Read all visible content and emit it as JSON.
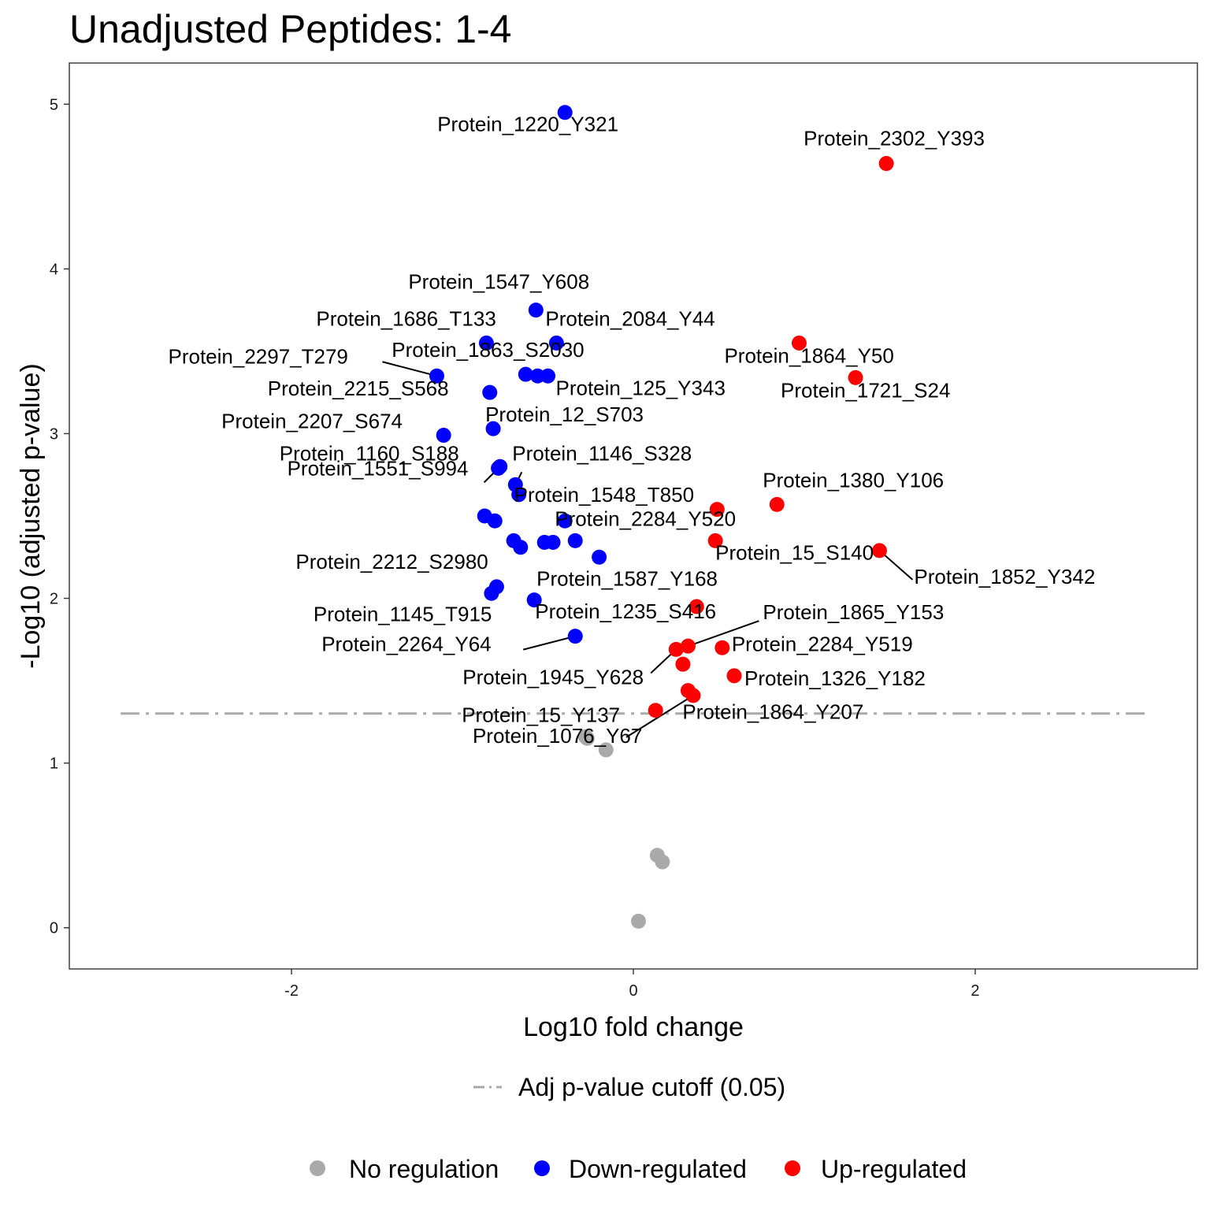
{
  "chart_data": {
    "type": "scatter",
    "title": "Unadjusted Peptides: 1-4",
    "xlabel": "Log10 fold change",
    "ylabel": "-Log10 (adjusted p-value)",
    "xlim": [
      -3.3,
      3.3
    ],
    "ylim": [
      -0.25,
      5.25
    ],
    "xticks": [
      -2,
      0,
      2
    ],
    "yticks": [
      0,
      1,
      2,
      3,
      4,
      5
    ],
    "xtick_labels": [
      "-2",
      "0",
      "2"
    ],
    "ytick_labels": [
      "0",
      "1",
      "2",
      "3",
      "4",
      "5"
    ],
    "grid": false,
    "cutoff": {
      "y": 1.301,
      "x_range": [
        -3.0,
        3.0
      ],
      "label": "Adj p-value cutoff (0.05)",
      "color": "#aaaaaa"
    },
    "legend_position": "bottom",
    "series": [
      {
        "name": "No regulation",
        "color": "#aaaaaa",
        "points": [
          {
            "x": -0.28,
            "y": 1.16
          },
          {
            "x": -0.27,
            "y": 1.15
          },
          {
            "x": -0.16,
            "y": 1.08
          },
          {
            "x": 0.14,
            "y": 0.44
          },
          {
            "x": 0.17,
            "y": 0.4
          },
          {
            "x": 0.03,
            "y": 0.04
          }
        ]
      },
      {
        "name": "Down-regulated",
        "color": "#0000ff",
        "points": [
          {
            "x": -0.4,
            "y": 4.95,
            "label": "Protein_1220_Y321"
          },
          {
            "x": -0.57,
            "y": 3.75,
            "label": "Protein_1547_Y608"
          },
          {
            "x": -0.86,
            "y": 3.55,
            "label": "Protein_1686_T133"
          },
          {
            "x": -0.45,
            "y": 3.55,
            "label": "Protein_2084_Y44"
          },
          {
            "x": -1.15,
            "y": 3.35,
            "label": "Protein_2297_T279"
          },
          {
            "x": -0.63,
            "y": 3.36,
            "label": "Protein_1863_S2030"
          },
          {
            "x": -0.56,
            "y": 3.35
          },
          {
            "x": -0.5,
            "y": 3.35,
            "label": "Protein_125_Y343"
          },
          {
            "x": -0.84,
            "y": 3.25,
            "label": "Protein_2215_S568"
          },
          {
            "x": -0.82,
            "y": 3.03,
            "label": "Protein_12_S703"
          },
          {
            "x": -1.11,
            "y": 2.99,
            "label": "Protein_2207_S674"
          },
          {
            "x": -0.78,
            "y": 2.8,
            "label": "Protein_1160_S188"
          },
          {
            "x": -0.69,
            "y": 2.69,
            "label": "Protein_1146_S328"
          },
          {
            "x": -0.67,
            "y": 2.63,
            "label": "Protein_1548_T850"
          },
          {
            "x": -0.79,
            "y": 2.79,
            "label": "Protein_1551_S994"
          },
          {
            "x": -0.87,
            "y": 2.5
          },
          {
            "x": -0.81,
            "y": 2.47
          },
          {
            "x": -0.4,
            "y": 2.47,
            "label": "Protein_2284_Y520"
          },
          {
            "x": -0.7,
            "y": 2.35
          },
          {
            "x": -0.66,
            "y": 2.31
          },
          {
            "x": -0.52,
            "y": 2.34
          },
          {
            "x": -0.47,
            "y": 2.34
          },
          {
            "x": -0.34,
            "y": 2.35
          },
          {
            "x": -0.2,
            "y": 2.25
          },
          {
            "x": -0.8,
            "y": 2.07,
            "label": "Protein_2212_S2980"
          },
          {
            "x": -0.83,
            "y": 2.03,
            "label": "Protein_1145_T915"
          },
          {
            "x": -0.58,
            "y": 1.99,
            "label": "Protein_1587_Y168"
          },
          {
            "x": -0.34,
            "y": 1.77,
            "label": "Protein_2264_Y64"
          }
        ]
      },
      {
        "name": "Up-regulated",
        "color": "#ff0000",
        "points": [
          {
            "x": 1.48,
            "y": 4.64,
            "label": "Protein_2302_Y393"
          },
          {
            "x": 0.97,
            "y": 3.55,
            "label": "Protein_1864_Y50"
          },
          {
            "x": 1.3,
            "y": 3.34,
            "label": "Protein_1721_S24"
          },
          {
            "x": 0.84,
            "y": 2.57,
            "label": "Protein_1380_Y106"
          },
          {
            "x": 0.49,
            "y": 2.54
          },
          {
            "x": 0.48,
            "y": 2.35,
            "label": "Protein_15_S140"
          },
          {
            "x": 1.44,
            "y": 2.29,
            "label": "Protein_1852_Y342"
          },
          {
            "x": 0.37,
            "y": 1.95,
            "label": "Protein_1235_S416"
          },
          {
            "x": 0.32,
            "y": 1.71,
            "label": "Protein_1865_Y153"
          },
          {
            "x": 0.25,
            "y": 1.69,
            "label": "Protein_1945_Y628"
          },
          {
            "x": 0.52,
            "y": 1.7,
            "label": "Protein_2284_Y519"
          },
          {
            "x": 0.29,
            "y": 1.6
          },
          {
            "x": 0.59,
            "y": 1.53,
            "label": "Protein_1326_Y182"
          },
          {
            "x": 0.32,
            "y": 1.44,
            "label": "Protein_1864_Y207"
          },
          {
            "x": 0.35,
            "y": 1.41,
            "label": "Protein_1076_Y67"
          },
          {
            "x": 0.13,
            "y": 1.32,
            "label": "Protein_15_Y137"
          }
        ]
      }
    ]
  }
}
